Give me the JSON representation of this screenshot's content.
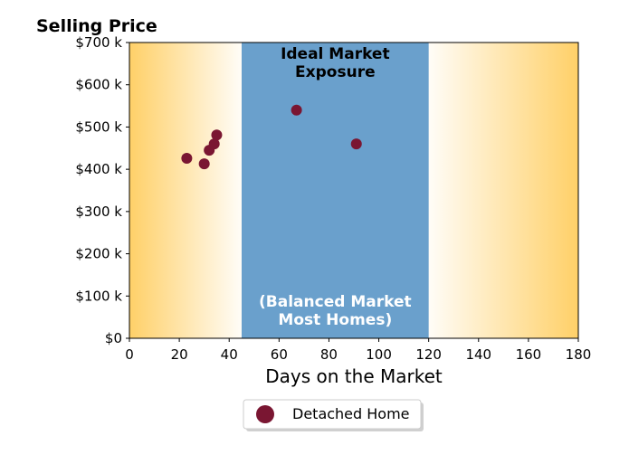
{
  "chart_data": {
    "type": "scatter",
    "ylabel": "Selling Price",
    "xlabel": "Days on the Market",
    "xlim": [
      0,
      180
    ],
    "ylim": [
      0,
      700000
    ],
    "x_ticks": [
      0,
      20,
      40,
      60,
      80,
      100,
      120,
      140,
      160,
      180
    ],
    "x_tick_labels": [
      "0",
      "20",
      "40",
      "60",
      "80",
      "100",
      "120",
      "140",
      "160",
      "180"
    ],
    "y_ticks": [
      0,
      100000,
      200000,
      300000,
      400000,
      500000,
      600000,
      700000
    ],
    "y_tick_labels": [
      "$0",
      "$100 k",
      "$200 k",
      "$300 k",
      "$400 k",
      "$500 k",
      "$600 k",
      "$700 k"
    ],
    "grid": false,
    "legend_position": "bottom-center",
    "balanced_zone": {
      "x_range": [
        45,
        120
      ],
      "color": "#6aa0cc",
      "title_lines": [
        "Ideal Market",
        "Exposure"
      ],
      "subtitle_lines": [
        "(Balanced Market",
        "Most Homes)"
      ]
    },
    "outer_gradient_color": "#ffd068",
    "series": [
      {
        "name": "Detached Home",
        "color": "#7a1632",
        "points": [
          {
            "x": 23,
            "y": 426000
          },
          {
            "x": 30,
            "y": 413000
          },
          {
            "x": 32,
            "y": 445000
          },
          {
            "x": 34,
            "y": 460000
          },
          {
            "x": 35,
            "y": 481000
          },
          {
            "x": 67,
            "y": 540000
          },
          {
            "x": 91,
            "y": 460000
          }
        ]
      }
    ]
  }
}
